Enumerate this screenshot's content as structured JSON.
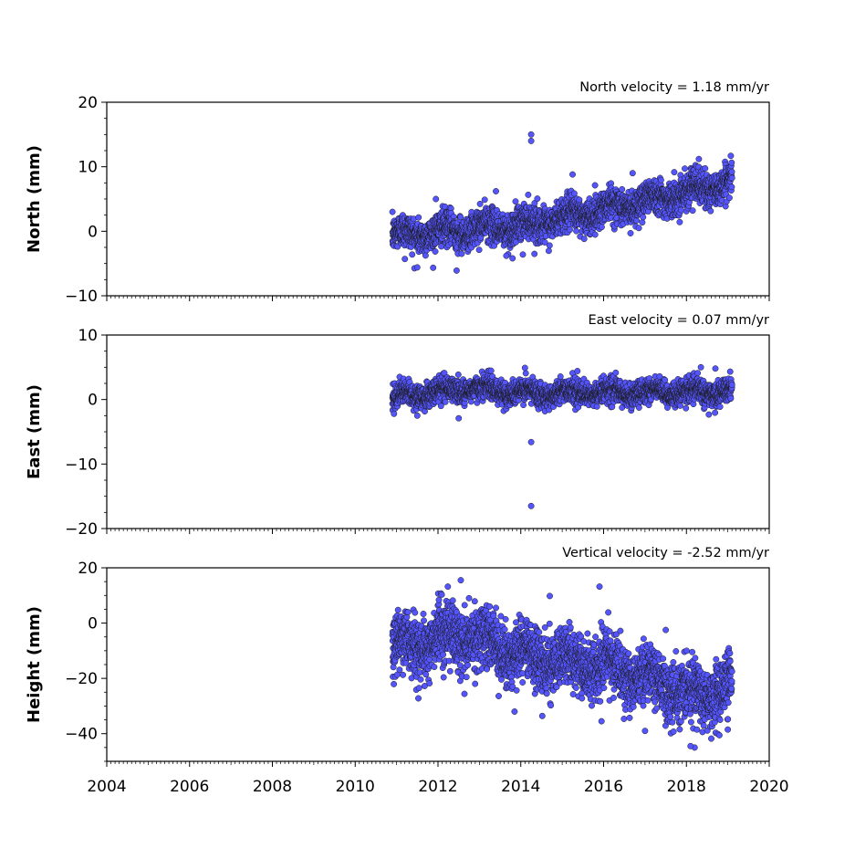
{
  "chart_data": [
    {
      "type": "scatter",
      "title": "North velocity = 1.18 mm/yr",
      "xlabel": "",
      "ylabel": "North (mm)",
      "xlim": [
        2004,
        2020
      ],
      "ylim": [
        -10,
        20
      ],
      "yticks": [
        -10,
        0,
        10,
        20
      ],
      "ytick_labels": [
        "−10",
        "0",
        "10",
        "20"
      ],
      "velocity_mm_per_yr": 1.18,
      "series": [
        {
          "trend": [
            [
              2010.9,
              -0.6
            ],
            [
              2014.2,
              1.0
            ],
            [
              2019.1,
              7.6
            ]
          ],
          "scatter_sd": 1.3,
          "outliers": [
            [
              2014.25,
              15.0
            ],
            [
              2014.25,
              14.0
            ],
            [
              2011.95,
              5.0
            ],
            [
              2013.4,
              6.2
            ],
            [
              2012.45,
              -6.1
            ],
            [
              2011.5,
              -5.6
            ],
            [
              2011.2,
              -4.3
            ],
            [
              2013.8,
              -4.2
            ],
            [
              2014.05,
              -3.6
            ],
            [
              2013.65,
              -3.8
            ],
            [
              2016.65,
              -0.3
            ],
            [
              2016.85,
              0.5
            ],
            [
              2018.3,
              11.2
            ],
            [
              2018.15,
              3.2
            ],
            [
              2015.25,
              8.8
            ],
            [
              2016.7,
              9.0
            ]
          ]
        }
      ]
    },
    {
      "type": "scatter",
      "title": "East velocity = 0.07 mm/yr",
      "xlabel": "",
      "ylabel": "East (mm)",
      "xlim": [
        2004,
        2020
      ],
      "ylim": [
        -20,
        10
      ],
      "yticks": [
        -20,
        -10,
        0,
        10
      ],
      "ytick_labels": [
        "−20",
        "−10",
        "0",
        "10"
      ],
      "velocity_mm_per_yr": 0.07,
      "series": [
        {
          "trend": [
            [
              2010.9,
              0.3
            ],
            [
              2012.8,
              1.8
            ],
            [
              2014.2,
              1.0
            ],
            [
              2019.1,
              1.2
            ]
          ],
          "scatter_sd": 0.9,
          "outliers": [
            [
              2014.25,
              -6.6
            ],
            [
              2014.25,
              -16.5
            ],
            [
              2014.1,
              4.9
            ],
            [
              2012.5,
              -2.9
            ],
            [
              2018.35,
              5.0
            ],
            [
              2018.7,
              4.8
            ],
            [
              2011.5,
              -2.5
            ]
          ]
        }
      ]
    },
    {
      "type": "scatter",
      "title": "Vertical velocity = -2.52 mm/yr",
      "xlabel": "",
      "ylabel": "Height (mm)",
      "xlim": [
        2004,
        2020
      ],
      "ylim": [
        -50,
        20
      ],
      "yticks": [
        -40,
        -20,
        0,
        20
      ],
      "ytick_labels": [
        "−40",
        "−20",
        "0",
        "20"
      ],
      "velocity_mm_per_yr": -2.52,
      "series": [
        {
          "trend": [
            [
              2010.9,
              -9.0
            ],
            [
              2012.6,
              -4.0
            ],
            [
              2014.2,
              -12.0
            ],
            [
              2016.5,
              -17.0
            ],
            [
              2018.2,
              -26.0
            ],
            [
              2019.1,
              -22.0
            ]
          ],
          "scatter_sd": 5.2,
          "outliers": [
            [
              2012.55,
              15.5
            ],
            [
              2015.9,
              13.2
            ],
            [
              2014.7,
              9.8
            ],
            [
              2012.75,
              9.0
            ],
            [
              2013.4,
              5.5
            ],
            [
              2018.2,
              -45.0
            ],
            [
              2018.1,
              -44.5
            ],
            [
              2013.85,
              -32.0
            ],
            [
              2015.95,
              -35.5
            ],
            [
              2017.0,
              -39.0
            ],
            [
              2019.0,
              -38.5
            ],
            [
              2017.5,
              -2.5
            ]
          ]
        }
      ]
    }
  ],
  "shared_x_axis": {
    "ticks": [
      2004,
      2006,
      2008,
      2010,
      2012,
      2014,
      2016,
      2018,
      2020
    ],
    "tick_labels": [
      "2004",
      "2006",
      "2008",
      "2010",
      "2012",
      "2014",
      "2016",
      "2018",
      "2020"
    ]
  },
  "colors": {
    "marker_fill": "#5555ff",
    "marker_edge": "#1a1a1a",
    "axes": "#000000",
    "background": "#ffffff"
  }
}
